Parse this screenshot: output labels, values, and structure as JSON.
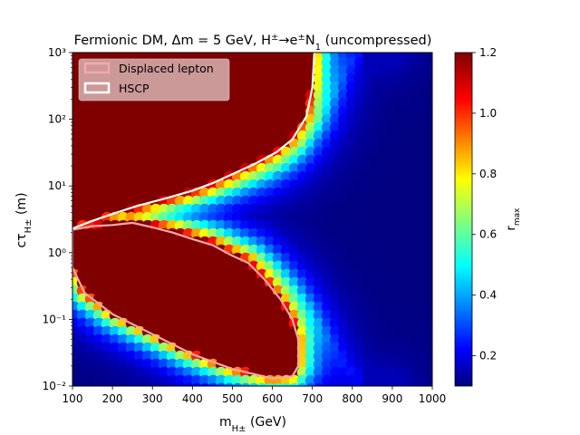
{
  "chart_data": {
    "type": "heatmap",
    "title": "Fermionic DM, Δm = 5 GeV, H±→e±N₁ (uncompressed)",
    "xlabel": "m_{H±} (GeV)",
    "ylabel": "cτ_{H±} (m)",
    "x_scale": "linear",
    "y_scale": "log",
    "xlim": [
      100,
      1000
    ],
    "ylim": [
      0.01,
      1000
    ],
    "x_ticks": [
      100,
      200,
      300,
      400,
      500,
      600,
      700,
      800,
      900,
      1000
    ],
    "y_ticks": [
      {
        "value": 0.01,
        "label": "10⁻²"
      },
      {
        "value": 0.1,
        "label": "10⁻¹"
      },
      {
        "value": 1,
        "label": "10⁰"
      },
      {
        "value": 10,
        "label": "10¹"
      },
      {
        "value": 100,
        "label": "10²"
      },
      {
        "value": 1000,
        "label": "10³"
      }
    ],
    "colorbar": {
      "label": "r_max",
      "range": [
        0.1,
        1.2
      ],
      "ticks": [
        0.2,
        0.4,
        0.6,
        0.8,
        1.0,
        1.2
      ],
      "colormap": "jet"
    },
    "legend": {
      "placement": "top-left",
      "entries": [
        "Displaced lepton",
        "HSCP"
      ]
    },
    "contours": [
      {
        "name": "Displaced lepton",
        "color": "#f4a8b0",
        "points": [
          [
            100,
            2.2
          ],
          [
            150,
            2.5
          ],
          [
            200,
            2.6
          ],
          [
            250,
            2.8
          ],
          [
            300,
            2.4
          ],
          [
            350,
            2.0
          ],
          [
            400,
            1.6
          ],
          [
            450,
            1.3
          ],
          [
            500,
            0.9
          ],
          [
            540,
            0.7
          ],
          [
            580,
            0.4
          ],
          [
            620,
            0.2
          ],
          [
            650,
            0.1
          ],
          [
            665,
            0.05
          ],
          [
            665,
            0.02
          ],
          [
            650,
            0.014
          ],
          [
            600,
            0.013
          ],
          [
            500,
            0.018
          ],
          [
            400,
            0.03
          ],
          [
            300,
            0.06
          ],
          [
            200,
            0.12
          ],
          [
            130,
            0.25
          ],
          [
            100,
            0.6
          ]
        ]
      },
      {
        "name": "HSCP",
        "color": "#ffffff",
        "points": [
          [
            100,
            2.3
          ],
          [
            150,
            3.0
          ],
          [
            200,
            3.8
          ],
          [
            260,
            5.0
          ],
          [
            320,
            6.2
          ],
          [
            400,
            8.5
          ],
          [
            450,
            11
          ],
          [
            500,
            15
          ],
          [
            560,
            22
          ],
          [
            610,
            32
          ],
          [
            650,
            50
          ],
          [
            685,
            110
          ],
          [
            700,
            300
          ],
          [
            705,
            1000
          ]
        ]
      }
    ],
    "bands": [
      {
        "name": "upper-arm",
        "x": [
          250,
          300,
          350,
          400,
          450,
          500,
          550,
          600,
          650,
          700,
          750,
          800,
          850,
          900
        ],
        "y": [
          4.5,
          5.2,
          5.8,
          6.8,
          8.2,
          10,
          12.5,
          16,
          25,
          60,
          200,
          800,
          1000,
          1000
        ]
      },
      {
        "name": "lower-arm",
        "x": [
          250,
          300,
          350,
          400,
          450,
          500,
          550,
          600,
          650,
          700,
          750,
          800,
          850,
          900
        ],
        "y": [
          2.5,
          2.3,
          2.1,
          1.8,
          1.5,
          1.2,
          0.9,
          0.6,
          0.3,
          0.12,
          0.04,
          0.015,
          0.01,
          0.01
        ]
      }
    ]
  }
}
